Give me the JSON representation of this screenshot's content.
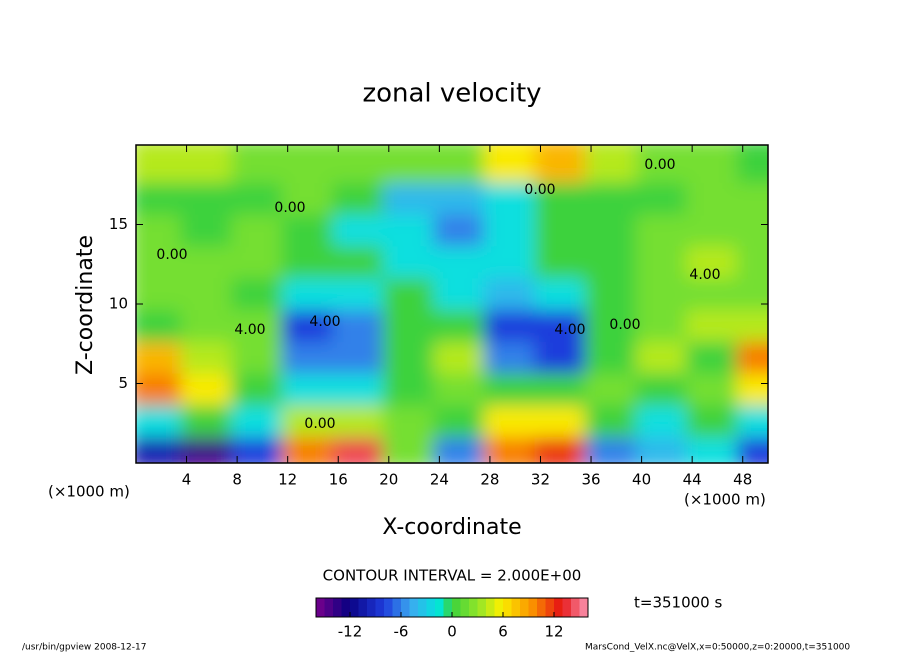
{
  "chart_data": {
    "type": "contour",
    "title": "zonal velocity",
    "x_label": "X-coordinate",
    "y_label": "Z-coordinate",
    "x_unit": "(×1000 m)",
    "y_unit": "(×1000 m)",
    "xlim": [
      0,
      50
    ],
    "ylim": [
      0,
      20
    ],
    "xticks": [
      4,
      8,
      12,
      16,
      20,
      24,
      28,
      32,
      36,
      40,
      44,
      48
    ],
    "yticks": [
      5,
      10,
      15
    ],
    "x": [
      2,
      6,
      10,
      14,
      18,
      22,
      26,
      30,
      34,
      38,
      42,
      46,
      50
    ],
    "z": [
      1,
      3,
      5,
      7,
      9,
      11,
      13,
      15,
      17,
      19
    ],
    "values": [
      [
        -10,
        -14,
        -8,
        10,
        14,
        2,
        -6,
        10,
        12,
        -6,
        -4,
        -2,
        -8
      ],
      [
        -2,
        0,
        -2,
        4,
        4,
        2,
        0,
        6,
        6,
        0,
        -2,
        0,
        -2
      ],
      [
        10,
        6,
        0,
        -2,
        -2,
        0,
        2,
        0,
        0,
        2,
        0,
        2,
        6
      ],
      [
        8,
        4,
        2,
        -6,
        -6,
        0,
        4,
        -6,
        -8,
        0,
        4,
        0,
        10
      ],
      [
        0,
        2,
        2,
        -8,
        -6,
        0,
        0,
        -8,
        -8,
        0,
        2,
        4,
        4
      ],
      [
        2,
        2,
        0,
        -2,
        -2,
        0,
        -2,
        -4,
        -2,
        0,
        2,
        2,
        2
      ],
      [
        2,
        2,
        2,
        0,
        0,
        -2,
        -2,
        -2,
        0,
        0,
        2,
        4,
        2
      ],
      [
        2,
        0,
        2,
        0,
        -2,
        -2,
        -6,
        -2,
        0,
        0,
        2,
        2,
        2
      ],
      [
        0,
        0,
        0,
        2,
        0,
        -4,
        -4,
        -2,
        0,
        0,
        0,
        2,
        2
      ],
      [
        4,
        4,
        2,
        2,
        2,
        2,
        2,
        6,
        8,
        4,
        2,
        2,
        0
      ]
    ],
    "contour_labels": [
      "0.00",
      "0.00",
      "0.00",
      "0.00",
      "4.00",
      "4.00",
      "0.00",
      "4.00",
      "0.00",
      "4.00"
    ],
    "contour_interval_text": "CONTOUR INTERVAL = 2.000E+00",
    "clim": [
      -16,
      16
    ],
    "colorbar_ticks": [
      -12,
      -6,
      0,
      6,
      12
    ],
    "time_text": "t=351000 s",
    "footer_left": "/usr/bin/gpview  2008-12-17",
    "footer_right": "MarsCond_VelX.nc@VelX,x=0:50000,z=0:20000,t=351000"
  }
}
